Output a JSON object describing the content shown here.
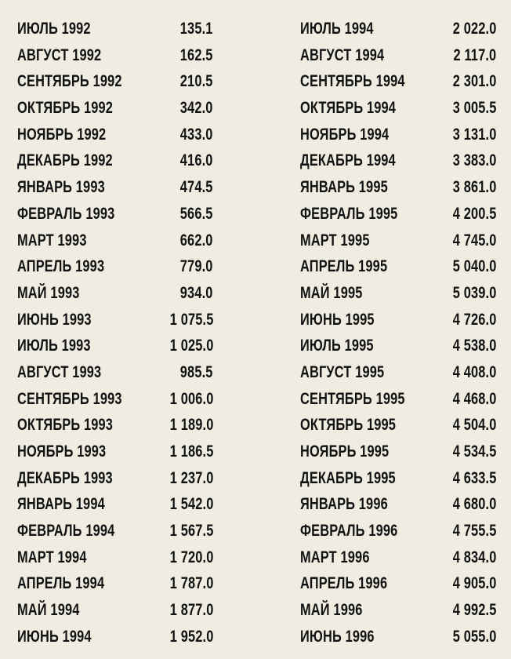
{
  "left_column": [
    {
      "month": "ИЮЛЬ 1992",
      "value": "135.1"
    },
    {
      "month": "АВГУСТ 1992",
      "value": "162.5"
    },
    {
      "month": "СЕНТЯБРЬ 1992",
      "value": "210.5"
    },
    {
      "month": "ОКТЯБРЬ 1992",
      "value": "342.0"
    },
    {
      "month": "НОЯБРЬ 1992",
      "value": "433.0"
    },
    {
      "month": "ДЕКАБРЬ 1992",
      "value": "416.0"
    },
    {
      "month": "ЯНВАРЬ 1993",
      "value": "474.5"
    },
    {
      "month": "ФЕВРАЛЬ 1993",
      "value": "566.5"
    },
    {
      "month": "МАРТ 1993",
      "value": "662.0"
    },
    {
      "month": "АПРЕЛЬ 1993",
      "value": "779.0"
    },
    {
      "month": "МАЙ 1993",
      "value": "934.0"
    },
    {
      "month": "ИЮНЬ 1993",
      "value": "1 075.5"
    },
    {
      "month": "ИЮЛЬ 1993",
      "value": "1 025.0"
    },
    {
      "month": "АВГУСТ 1993",
      "value": "985.5"
    },
    {
      "month": "СЕНТЯБРЬ 1993",
      "value": "1 006.0"
    },
    {
      "month": "ОКТЯБРЬ 1993",
      "value": "1 189.0"
    },
    {
      "month": "НОЯБРЬ 1993",
      "value": "1 186.5"
    },
    {
      "month": "ДЕКАБРЬ 1993",
      "value": "1 237.0"
    },
    {
      "month": "ЯНВАРЬ 1994",
      "value": "1 542.0"
    },
    {
      "month": "ФЕВРАЛЬ 1994",
      "value": "1 567.5"
    },
    {
      "month": "МАРТ 1994",
      "value": "1 720.0"
    },
    {
      "month": "АПРЕЛЬ 1994",
      "value": "1 787.0"
    },
    {
      "month": "МАЙ 1994",
      "value": "1 877.0"
    },
    {
      "month": "ИЮНЬ 1994",
      "value": "1 952.0"
    }
  ],
  "right_column": [
    {
      "month": "ИЮЛЬ 1994",
      "value": "2 022.0"
    },
    {
      "month": "АВГУСТ 1994",
      "value": "2 117.0"
    },
    {
      "month": "СЕНТЯБРЬ 1994",
      "value": "2 301.0"
    },
    {
      "month": "ОКТЯБРЬ 1994",
      "value": "3 005.5"
    },
    {
      "month": "НОЯБРЬ 1994",
      "value": "3 131.0"
    },
    {
      "month": "ДЕКАБРЬ 1994",
      "value": "3 383.0"
    },
    {
      "month": "ЯНВАРЬ 1995",
      "value": "3 861.0"
    },
    {
      "month": "ФЕВРАЛЬ 1995",
      "value": "4 200.5"
    },
    {
      "month": "МАРТ 1995",
      "value": "4 745.0"
    },
    {
      "month": "АПРЕЛЬ 1995",
      "value": "5 040.0"
    },
    {
      "month": "МАЙ 1995",
      "value": "5 039.0"
    },
    {
      "month": "ИЮНЬ 1995",
      "value": "4 726.0"
    },
    {
      "month": "ИЮЛЬ 1995",
      "value": "4 538.0"
    },
    {
      "month": "АВГУСТ 1995",
      "value": "4 408.0"
    },
    {
      "month": "СЕНТЯБРЬ 1995",
      "value": "4 468.0"
    },
    {
      "month": "ОКТЯБРЬ 1995",
      "value": "4 504.0"
    },
    {
      "month": "НОЯБРЬ 1995",
      "value": "4 534.5"
    },
    {
      "month": "ДЕКАБРЬ 1995",
      "value": "4 633.5"
    },
    {
      "month": "ЯНВАРЬ 1996",
      "value": "4 680.0"
    },
    {
      "month": "ФЕВРАЛЬ 1996",
      "value": "4 755.5"
    },
    {
      "month": "МАРТ 1996",
      "value": "4 834.0"
    },
    {
      "month": "АПРЕЛЬ 1996",
      "value": "4 905.0"
    },
    {
      "month": "МАЙ 1996",
      "value": "4 992.5"
    },
    {
      "month": "ИЮНЬ 1996",
      "value": "5 055.0"
    }
  ]
}
